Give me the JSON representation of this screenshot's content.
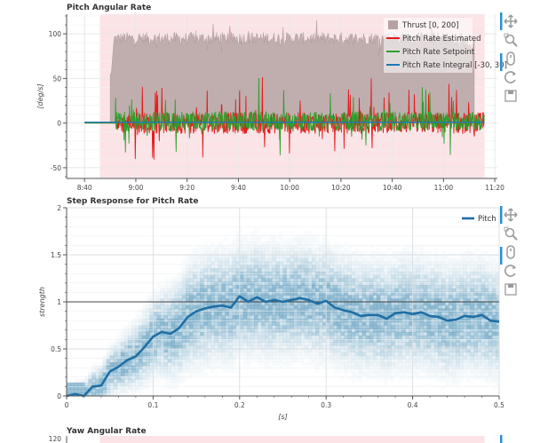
{
  "chart_data": [
    {
      "type": "line",
      "title": "Pitch Angular Rate",
      "xlabel": "",
      "ylabel": "[deg/s]",
      "x_ticks": [
        "8:40",
        "9:00",
        "9:20",
        "9:40",
        "10:00",
        "10:20",
        "10:40",
        "11:00",
        "11:20"
      ],
      "xlim": [
        "8:33",
        "11:21"
      ],
      "ylim": [
        -62,
        122
      ],
      "y_ticks": [
        -50,
        0,
        50,
        100
      ],
      "grid": true,
      "legend_position": "top-right",
      "highlight_range": [
        "8:46",
        "11:16"
      ],
      "series": [
        {
          "name": "Thrust [0, 200]",
          "kind": "area",
          "color": "#b5a3a3",
          "approx_level": 95,
          "approx_range": [
            75,
            115
          ],
          "x_range": [
            "8:50",
            "11:12"
          ]
        },
        {
          "name": "Pitch Rate Estimated",
          "kind": "line",
          "color": "#e41a1c",
          "approx_range": [
            -55,
            55
          ],
          "x_range": [
            "8:40",
            "11:16"
          ]
        },
        {
          "name": "Pitch Rate Setpoint",
          "kind": "line",
          "color": "#2ca02c",
          "approx_range": [
            -30,
            55
          ],
          "x_range": [
            "8:40",
            "11:16"
          ]
        },
        {
          "name": "Pitch Rate Integral [-30, 30]",
          "kind": "line",
          "color": "#1f77b4",
          "approx_level": 1,
          "x_range": [
            "8:40",
            "11:16"
          ]
        }
      ]
    },
    {
      "type": "heatmap",
      "title": "Step Response for Pitch Rate",
      "xlabel": "[s]",
      "ylabel": "strength",
      "xlim": [
        0,
        0.5
      ],
      "ylim": [
        0,
        2
      ],
      "x_ticks": [
        "0",
        "0.1",
        "0.2",
        "0.3",
        "0.4",
        "0.5"
      ],
      "y_ticks": [
        "0",
        "0.5",
        "1",
        "1.5",
        "2"
      ],
      "reference_line": 1,
      "legend_position": "top-right",
      "series": [
        {
          "name": "Pitch",
          "kind": "line",
          "color": "#1f6fa5",
          "x": [
            0,
            0.01,
            0.02,
            0.03,
            0.04,
            0.05,
            0.06,
            0.07,
            0.08,
            0.09,
            0.1,
            0.11,
            0.12,
            0.13,
            0.14,
            0.15,
            0.16,
            0.17,
            0.18,
            0.19,
            0.2,
            0.21,
            0.22,
            0.23,
            0.24,
            0.25,
            0.26,
            0.27,
            0.28,
            0.29,
            0.3,
            0.31,
            0.32,
            0.33,
            0.34,
            0.35,
            0.36,
            0.37,
            0.38,
            0.39,
            0.4,
            0.41,
            0.42,
            0.43,
            0.44,
            0.45,
            0.46,
            0.47,
            0.48,
            0.49,
            0.5
          ],
          "y": [
            0,
            0.02,
            0,
            0.1,
            0.11,
            0.26,
            0.31,
            0.38,
            0.42,
            0.52,
            0.63,
            0.68,
            0.66,
            0.72,
            0.84,
            0.9,
            0.93,
            0.95,
            0.96,
            0.94,
            1.06,
            1.0,
            1.05,
            1.0,
            1.02,
            1.0,
            1.02,
            1.04,
            1.02,
            0.98,
            1.01,
            0.94,
            0.91,
            0.89,
            0.85,
            0.86,
            0.86,
            0.82,
            0.88,
            0.89,
            0.87,
            0.89,
            0.85,
            0.84,
            0.8,
            0.81,
            0.85,
            0.84,
            0.86,
            0.8,
            0.79
          ]
        }
      ],
      "density_color": "#4a90b5"
    },
    {
      "type": "line",
      "title": "Yaw Angular Rate",
      "y_ticks": [
        "120"
      ],
      "highlight_range": [
        "8:46",
        "11:16"
      ]
    }
  ],
  "toolbar": {
    "icons": [
      "pan-icon",
      "box-zoom-icon",
      "wheel-zoom-icon",
      "reset-icon",
      "save-icon"
    ]
  },
  "colors": {
    "highlight": "#fbe3e6",
    "grid": "#e8e8e8",
    "axis": "#555555",
    "tool_active": "#2a8fd1",
    "tool": "#9a9a9a"
  }
}
